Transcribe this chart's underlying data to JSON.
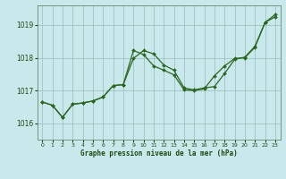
{
  "title": "Graphe pression niveau de la mer (hPa)",
  "bg_color": "#c8e8ec",
  "grid_color": "#99bbbb",
  "line_color": "#2d6620",
  "xlabel_color": "#1a4a10",
  "xlim": [
    -0.5,
    23.5
  ],
  "ylim": [
    1015.5,
    1019.6
  ],
  "yticks": [
    1016,
    1017,
    1018,
    1019
  ],
  "xticks": [
    0,
    1,
    2,
    3,
    4,
    5,
    6,
    7,
    8,
    9,
    10,
    11,
    12,
    13,
    14,
    15,
    16,
    17,
    18,
    19,
    20,
    21,
    22,
    23
  ],
  "line_zigzag_x": [
    0,
    1,
    2,
    3,
    4,
    5,
    6,
    7,
    8,
    9,
    10,
    11,
    12,
    13,
    14,
    15,
    16,
    17,
    18,
    19,
    20,
    21,
    22,
    23
  ],
  "line_zigzag_y": [
    1016.65,
    1016.55,
    1016.18,
    1016.58,
    1016.62,
    1016.68,
    1016.8,
    1017.15,
    1017.18,
    1018.22,
    1018.1,
    1017.75,
    1017.62,
    1017.48,
    1017.02,
    1017.0,
    1017.05,
    1017.45,
    1017.75,
    1017.98,
    1018.0,
    1018.32,
    1019.08,
    1019.32
  ],
  "line_trend_x": [
    0,
    1,
    2,
    3,
    4,
    5,
    6,
    7,
    8,
    9,
    10,
    11,
    12,
    13,
    14,
    15,
    16,
    17,
    18,
    19,
    20,
    21,
    22,
    23
  ],
  "line_trend_y": [
    1016.65,
    1016.55,
    1016.18,
    1016.58,
    1016.62,
    1016.68,
    1016.8,
    1017.15,
    1017.18,
    1017.98,
    1018.22,
    1018.12,
    1017.78,
    1017.62,
    1017.08,
    1017.02,
    1017.08,
    1017.12,
    1017.52,
    1017.95,
    1018.02,
    1018.35,
    1019.08,
    1019.25
  ],
  "figsize": [
    3.2,
    2.0
  ],
  "dpi": 100
}
